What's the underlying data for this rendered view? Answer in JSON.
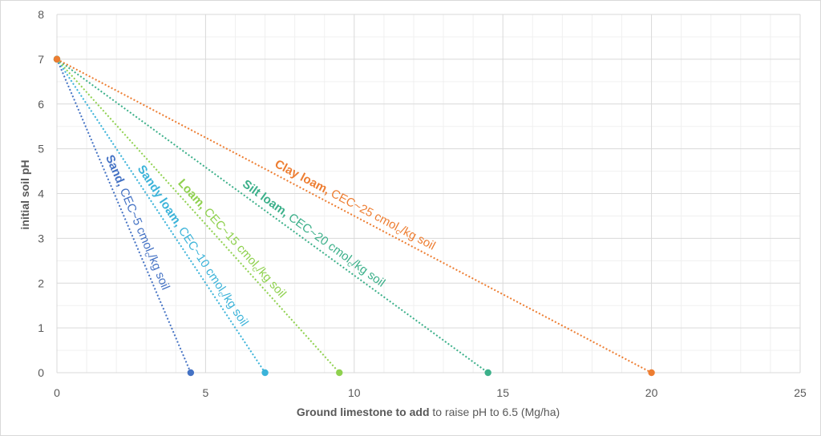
{
  "chart_data": {
    "type": "scatter",
    "xlabel_bold": "Ground limestone to add",
    "xlabel_rest": " to raise pH to 6.5 (Mg/ha)",
    "ylabel": "initial soil pH",
    "xlim": [
      0,
      25
    ],
    "ylim": [
      0,
      8
    ],
    "x_ticks": [
      0,
      5,
      10,
      15,
      20,
      25
    ],
    "y_ticks": [
      0,
      1,
      2,
      3,
      4,
      5,
      6,
      7,
      8
    ],
    "grid": true,
    "minor_grid": true,
    "legend": "none (inline labels along lines)",
    "series": [
      {
        "name_bold": "Sand,",
        "name_rest": " CEC~5 cmol",
        "sub": "c",
        "tail": "/kg soil",
        "color": "#4472c4",
        "points": [
          [
            0,
            7
          ],
          [
            4.5,
            0
          ]
        ]
      },
      {
        "name_bold": "Sandy loam,",
        "name_rest": " CEC~10 cmol",
        "sub": "c",
        "tail": "/kg soil",
        "color": "#3bb3d9",
        "points": [
          [
            0,
            7
          ],
          [
            7,
            0
          ]
        ]
      },
      {
        "name_bold": "Loam,",
        "name_rest": " CEC~15 cmol",
        "sub": "c",
        "tail": "/kg soil",
        "color": "#8fd14f",
        "points": [
          [
            0,
            7
          ],
          [
            9.5,
            0
          ]
        ]
      },
      {
        "name_bold": "Silt loam,",
        "name_rest": " CEC~20 cmol",
        "sub": "c",
        "tail": "/kg soil",
        "color": "#3cb08a",
        "points": [
          [
            0,
            7
          ],
          [
            14.5,
            0
          ]
        ]
      },
      {
        "name_bold": "Clay loam,",
        "name_rest": " CEC~25 cmol",
        "sub": "c",
        "tail": "/kg soil",
        "color": "#ed7d31",
        "points": [
          [
            0,
            7
          ],
          [
            20,
            0
          ]
        ]
      }
    ]
  }
}
